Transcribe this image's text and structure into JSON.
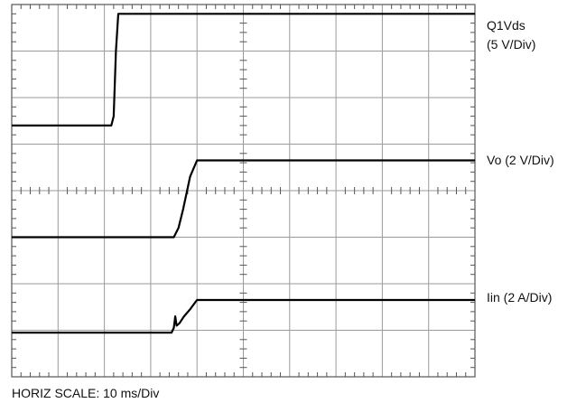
{
  "chart_data": {
    "type": "line",
    "grid": true,
    "divisions": {
      "horizontal": 10,
      "vertical": 8
    },
    "xlim": [
      0,
      10
    ],
    "ylim": [
      0,
      8
    ],
    "x_caption": "HORIZ SCALE: 10 ms/Div",
    "series": [
      {
        "id": "q1vds",
        "label_lines": [
          "Q1Vds",
          "(5 V/Div)"
        ],
        "points": [
          [
            0,
            5.4
          ],
          [
            2.15,
            5.4
          ],
          [
            2.2,
            5.6
          ],
          [
            2.25,
            7.0
          ],
          [
            2.3,
            7.8
          ],
          [
            10,
            7.8
          ]
        ]
      },
      {
        "id": "vo",
        "label_lines": [
          "Vo (2 V/Div)"
        ],
        "points": [
          [
            0,
            3.0
          ],
          [
            3.5,
            3.0
          ],
          [
            3.6,
            3.2
          ],
          [
            3.7,
            3.6
          ],
          [
            3.85,
            4.3
          ],
          [
            4.0,
            4.65
          ],
          [
            10,
            4.65
          ]
        ]
      },
      {
        "id": "iin",
        "label_lines": [
          "Iin (2 A/Div)"
        ],
        "points": [
          [
            0,
            0.95
          ],
          [
            3.45,
            0.95
          ],
          [
            3.5,
            1.05
          ],
          [
            3.53,
            1.3
          ],
          [
            3.56,
            1.1
          ],
          [
            3.62,
            1.15
          ],
          [
            3.72,
            1.3
          ],
          [
            3.85,
            1.45
          ],
          [
            4.0,
            1.65
          ],
          [
            10,
            1.65
          ]
        ]
      }
    ]
  }
}
